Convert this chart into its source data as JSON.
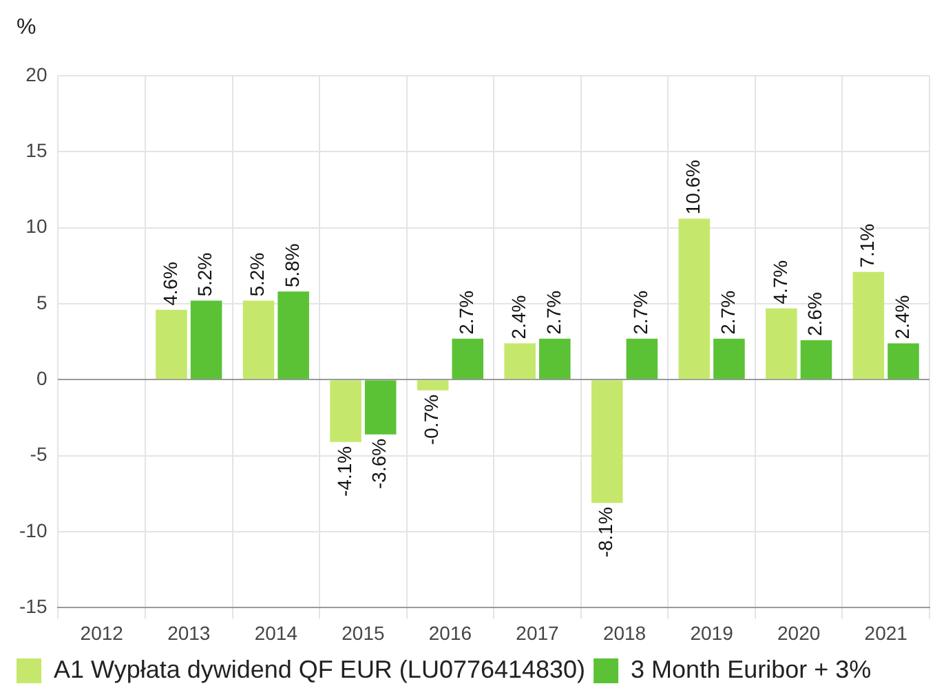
{
  "chart_data": {
    "type": "bar",
    "ylabel": "%",
    "categories": [
      "2012",
      "2013",
      "2014",
      "2015",
      "2016",
      "2017",
      "2018",
      "2019",
      "2020",
      "2021"
    ],
    "series": [
      {
        "name": "A1 Wypłata dywidend QF EUR (LU0776414830)",
        "color": "#c5e86c",
        "values": [
          null,
          4.6,
          5.2,
          -4.1,
          -0.7,
          2.4,
          -8.1,
          10.6,
          4.7,
          7.1
        ],
        "value_labels": [
          null,
          "4.6%",
          "5.2%",
          "-4.1%",
          "-0.7%",
          "2.4%",
          "-8.1%",
          "10.6%",
          "4.7%",
          "7.1%"
        ]
      },
      {
        "name": "3 Month Euribor + 3%",
        "color": "#5bc236",
        "values": [
          null,
          5.2,
          5.8,
          -3.6,
          2.7,
          2.7,
          2.7,
          2.7,
          2.6,
          2.4
        ],
        "value_labels": [
          null,
          "5.2%",
          "5.8%",
          "-3.6%",
          "2.7%",
          "2.7%",
          "2.7%",
          "2.7%",
          "2.6%",
          "2.4%"
        ]
      }
    ],
    "ylim": [
      -15,
      20
    ],
    "yticks": [
      -15,
      -10,
      -5,
      0,
      5,
      10,
      15,
      20
    ],
    "grid": true,
    "legend": "bottom"
  }
}
